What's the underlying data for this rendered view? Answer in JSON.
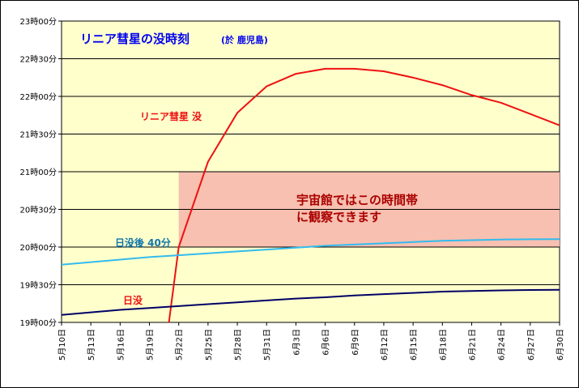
{
  "chart_data": {
    "type": "line",
    "title": "リニア彗星の没時刻",
    "subtitle": "(於 鹿児島)",
    "y_ticks": [
      "19時00分",
      "19時30分",
      "20時00分",
      "20時30分",
      "21時00分",
      "21時30分",
      "22時00分",
      "22時30分",
      "23時00分"
    ],
    "ylim_minutes": [
      1140,
      1380
    ],
    "x_labels": [
      "5月10日",
      "5月13日",
      "5月16日",
      "5月19日",
      "5月22日",
      "5月25日",
      "5月28日",
      "5月31日",
      "6月3日",
      "6月6日",
      "6月9日",
      "6月12日",
      "6月15日",
      "6月18日",
      "6月21日",
      "6月24日",
      "6月27日",
      "6月30日"
    ],
    "x_day_of_year": [
      130,
      133,
      136,
      139,
      142,
      145,
      148,
      151,
      154,
      157,
      160,
      163,
      166,
      169,
      172,
      175,
      178,
      181
    ],
    "xlim_day_of_year": [
      130,
      181
    ],
    "series": [
      {
        "name": "リニア彗星 没",
        "color": "#ee1111",
        "x": [
          141,
          142,
          145,
          148,
          151,
          154,
          157,
          160,
          163,
          166,
          169,
          172,
          175,
          178,
          181
        ],
        "y": [
          1140,
          1200,
          1268,
          1307,
          1328,
          1338,
          1342,
          1342,
          1340,
          1335,
          1329,
          1321,
          1315,
          1306,
          1297
        ]
      },
      {
        "name": "日没後 40分",
        "color": "#33bbee",
        "x": [
          130,
          133,
          136,
          139,
          142,
          145,
          148,
          151,
          154,
          157,
          160,
          163,
          166,
          169,
          172,
          175,
          178,
          181
        ],
        "y": [
          1186,
          1188,
          1190,
          1192,
          1193.5,
          1195,
          1196.5,
          1198,
          1199.5,
          1201,
          1202,
          1203,
          1204,
          1205,
          1205.5,
          1206,
          1206.2,
          1206.3
        ]
      },
      {
        "name": "日没",
        "color": "#000066",
        "x": [
          130,
          133,
          136,
          139,
          142,
          145,
          148,
          151,
          154,
          157,
          160,
          163,
          166,
          169,
          172,
          175,
          178,
          181
        ],
        "y": [
          1146,
          1148,
          1150,
          1151.5,
          1153,
          1154.5,
          1156,
          1157.5,
          1159,
          1160,
          1161.5,
          1162.5,
          1163.5,
          1164.5,
          1165,
          1165.5,
          1165.8,
          1166
        ]
      }
    ],
    "highlight_band": {
      "x_from": 142,
      "x_to": 181,
      "y_from": 1200,
      "y_to": 1260,
      "color": "#f7c0b0",
      "label_lines": [
        "宇宙館ではこの時間帯",
        "に観察できます"
      ]
    },
    "plot_background": "#ffffcc",
    "grid": "horizontal"
  }
}
